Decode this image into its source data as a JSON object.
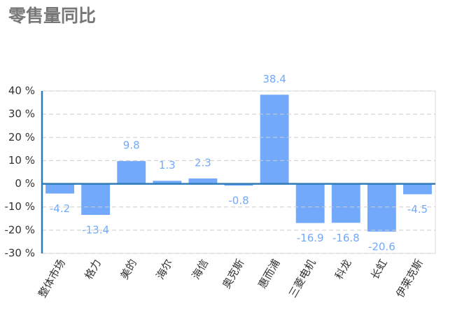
{
  "chart_data": {
    "type": "bar",
    "title": "零售量同比",
    "categories": [
      "整体市场",
      "格力",
      "美的",
      "海尔",
      "海信",
      "奥克斯",
      "惠而浦",
      "三菱电机",
      "科龙",
      "长虹",
      "伊莱克斯"
    ],
    "values": [
      -4.2,
      -13.4,
      9.8,
      1.3,
      2.3,
      -0.8,
      38.4,
      -16.9,
      -16.8,
      -20.6,
      -4.5
    ],
    "color": "#72a9fb",
    "ylim": [
      -30,
      40
    ],
    "yticks": [
      {
        "value": -30,
        "label": "-30 %"
      },
      {
        "value": -20,
        "label": "-20 %"
      },
      {
        "value": -10,
        "label": "-10 %"
      },
      {
        "value": 0,
        "label": "0 %"
      },
      {
        "value": 10,
        "label": "10 %"
      },
      {
        "value": 20,
        "label": "20 %"
      },
      {
        "value": 30,
        "label": "30 %"
      },
      {
        "value": 40,
        "label": "40 %"
      }
    ],
    "grid": true
  }
}
